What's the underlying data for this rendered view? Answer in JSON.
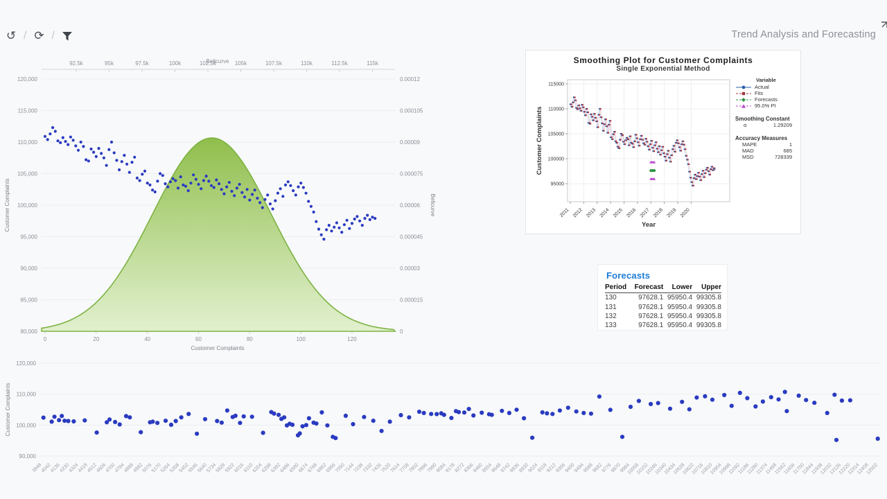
{
  "toolbar": {
    "history_icon": "↺",
    "refresh_icon": "⟳",
    "separator": "/"
  },
  "header": {
    "title": "Trend Analysis and Forecasting"
  },
  "main_chart": {
    "top_axis": {
      "title": "Bellcurve",
      "ticks": [
        "92.5k",
        "95k",
        "97.5k",
        "100k",
        "102.5k",
        "105k",
        "107.5k",
        "110k",
        "112.5k",
        "115k"
      ]
    },
    "left_axis": {
      "title": "Customer Complaints",
      "ticks": [
        "120,000",
        "115,000",
        "110,000",
        "105,000",
        "100,000",
        "95,000",
        "90,000",
        "85,000",
        "80,000"
      ]
    },
    "right_axis": {
      "title": "Bellcurve",
      "ticks": [
        "0.00012",
        "0.000105",
        "0.00009",
        "0.000075",
        "0.00006",
        "0.000045",
        "0.00003",
        "0.000015",
        "0"
      ]
    },
    "bottom_axis": {
      "title": "Customer Complaints",
      "ticks": [
        "0",
        "20",
        "40",
        "60",
        "80",
        "100",
        "120"
      ]
    }
  },
  "smoothing_plot": {
    "title": "Smoothing Plot for Customer Complaints",
    "subtitle": "Single Exponential Method",
    "ylabel": "Customer Complaints",
    "xlabel": "Year",
    "yticks": [
      "115000",
      "110000",
      "105000",
      "100000",
      "95000"
    ],
    "xticks": [
      "2011",
      "2012",
      "2013",
      "2014",
      "2015",
      "2016",
      "2017",
      "2018",
      "2019",
      "2020"
    ],
    "legend": {
      "title": "Variable",
      "items": [
        {
          "label": "Actual",
          "color": "#2b5fad",
          "marker": "circle"
        },
        {
          "label": "Fits",
          "color": "#a33540",
          "marker": "square"
        },
        {
          "label": "Forecasts",
          "color": "#2e9444",
          "marker": "diamond"
        },
        {
          "label": "95.0% PI",
          "color": "#bb4fd0",
          "marker": "triangle"
        }
      ]
    },
    "smoothing_constant": {
      "title": "Smoothing Constant",
      "alpha": "α",
      "value": "1.29209"
    },
    "accuracy": {
      "title": "Accuracy Measures",
      "rows": [
        [
          "MAPE",
          "1"
        ],
        [
          "MAD",
          "685"
        ],
        [
          "MSD",
          "728339"
        ]
      ]
    }
  },
  "forecasts": {
    "title": "Forecasts",
    "columns": [
      "Period",
      "Forecast",
      "Lower",
      "Upper"
    ],
    "rows": [
      [
        "130",
        "97628.1",
        "95950.4",
        "99305.8"
      ],
      [
        "131",
        "97628.1",
        "95950.4",
        "99305.8"
      ],
      [
        "132",
        "97628.1",
        "95950.4",
        "99305.8"
      ],
      [
        "133",
        "97628.1",
        "95950.4",
        "99305.8"
      ]
    ]
  },
  "bottom_chart": {
    "ylabel": "Customer Complaints",
    "yticks": [
      "120,000",
      "110,000",
      "100,000",
      "90,000"
    ],
    "xticks": [
      "3948",
      "4042",
      "4136",
      "4230",
      "4324",
      "4418",
      "4512",
      "4606",
      "4700",
      "4794",
      "4888",
      "4982",
      "5076",
      "5170",
      "5264",
      "5358",
      "5452",
      "5546",
      "5640",
      "5734",
      "5828",
      "5922",
      "6016",
      "6110",
      "6204",
      "6298",
      "6392",
      "6486",
      "6580",
      "6674",
      "6768",
      "6862",
      "6956",
      "7050",
      "7144",
      "7238",
      "7332",
      "7426",
      "7520",
      "7614",
      "7708",
      "7802",
      "7896",
      "7990",
      "8084",
      "8178",
      "8272",
      "8366",
      "8460",
      "8554",
      "8648",
      "8742",
      "8836",
      "8930",
      "9024",
      "9118",
      "9212",
      "9306",
      "9400",
      "9494",
      "9588",
      "9682",
      "9776",
      "9870",
      "9964",
      "10058",
      "10152",
      "10246",
      "10340",
      "10434",
      "10528",
      "10622",
      "10716",
      "10810",
      "10904",
      "10998",
      "11092",
      "11186",
      "11280",
      "11374",
      "11468",
      "11562",
      "11656",
      "11750",
      "11844",
      "11938",
      "12032",
      "12126",
      "12220",
      "12314",
      "12408",
      "12502"
    ]
  },
  "chart_data": {
    "type": "multi",
    "colors": {
      "scatter_blue": "#2a3bc0",
      "bell_green": "#7cb342",
      "bell_green_light": "#ddeec6",
      "grid": "#ebedf0",
      "axis_line": "#cfd3da",
      "tick_text": "#8a8f98",
      "actual_blue": "#2b5fad",
      "actual_connector": "#aac7e8",
      "fits_red": "#a33540",
      "fits_connector": "#e3b0b5",
      "forecast_green": "#2e9444",
      "pi_magenta": "#bb4fd0"
    },
    "complaints_series": [
      110900,
      110400,
      111300,
      112300,
      111700,
      110200,
      109900,
      110700,
      110100,
      109600,
      110800,
      110300,
      109400,
      108700,
      110000,
      109300,
      107200,
      107000,
      108900,
      108400,
      107700,
      109000,
      108200,
      107500,
      106300,
      108800,
      110000,
      108300,
      107100,
      105600,
      106900,
      107900,
      106500,
      105200,
      106800,
      107600,
      104300,
      103900,
      104900,
      105400,
      103500,
      103200,
      102400,
      102100,
      103800,
      105000,
      104700,
      103400,
      102900,
      103700,
      104200,
      103900,
      102700,
      104500,
      103200,
      103000,
      102300,
      103500,
      104800,
      104100,
      103300,
      102600,
      103900,
      104600,
      103800,
      103100,
      102800,
      104000,
      103400,
      102500,
      101800,
      102900,
      103600,
      102200,
      101500,
      102700,
      103300,
      102000,
      101300,
      102500,
      100800,
      101700,
      102400,
      101100,
      100400,
      99600,
      100900,
      101600,
      100200,
      99400,
      100700,
      101900,
      102600,
      101400,
      103200,
      103700,
      103100,
      102300,
      101600,
      102900,
      103500,
      102800,
      101900,
      100600,
      99800,
      98900,
      97400,
      96200,
      95300,
      94600,
      96100,
      96800,
      95900,
      96500,
      97200,
      96400,
      95700,
      96900,
      97600,
      96300,
      97100,
      97800,
      98200,
      97500,
      96800,
      97900,
      98400,
      97700,
      98100,
      97900
    ],
    "main_chart": {
      "type": "scatter+area",
      "x_range": [
        0,
        129
      ],
      "y_left_range": [
        80000,
        120000
      ],
      "y_right_range": [
        0,
        0.00012
      ],
      "bellcurve": {
        "mean": 102800,
        "sd": 4500,
        "peak_density": 9.2e-05
      }
    },
    "smoothing": {
      "type": "line",
      "y_range": [
        95000,
        115000
      ],
      "forecast_value": 97628.1,
      "pi_lower": 95950.4,
      "pi_upper": 99305.8,
      "forecast_periods": [
        130,
        131,
        132,
        133
      ]
    },
    "bottom_scatter": {
      "type": "scatter",
      "y_range": [
        90000,
        120000
      ],
      "points": [
        [
          0.2,
          102400
        ],
        [
          1.1,
          101100
        ],
        [
          1.4,
          102700
        ],
        [
          1.9,
          101600
        ],
        [
          2.2,
          102950
        ],
        [
          2.5,
          101400
        ],
        [
          2.9,
          101300
        ],
        [
          3.5,
          101200
        ],
        [
          4.7,
          101500
        ],
        [
          6.0,
          97600
        ],
        [
          7.1,
          100900
        ],
        [
          7.4,
          101800
        ],
        [
          8.0,
          101000
        ],
        [
          8.5,
          100200
        ],
        [
          9.2,
          102900
        ],
        [
          9.6,
          102500
        ],
        [
          10.8,
          97700
        ],
        [
          11.8,
          100900
        ],
        [
          12.1,
          101100
        ],
        [
          12.6,
          100700
        ],
        [
          13.5,
          101400
        ],
        [
          14.1,
          100100
        ],
        [
          14.6,
          101300
        ],
        [
          15.2,
          102500
        ],
        [
          16.0,
          103600
        ],
        [
          16.9,
          97200
        ],
        [
          17.8,
          101900
        ],
        [
          19.1,
          101300
        ],
        [
          19.6,
          100800
        ],
        [
          20.2,
          104700
        ],
        [
          20.8,
          102600
        ],
        [
          21.1,
          103000
        ],
        [
          21.6,
          100700
        ],
        [
          22.0,
          102800
        ],
        [
          22.9,
          102700
        ],
        [
          24.1,
          97500
        ],
        [
          25.0,
          104200
        ],
        [
          25.3,
          103700
        ],
        [
          25.8,
          103300
        ],
        [
          26.1,
          102000
        ],
        [
          26.4,
          102500
        ],
        [
          26.7,
          99900
        ],
        [
          27.0,
          100400
        ],
        [
          27.3,
          100100
        ],
        [
          27.9,
          96700
        ],
        [
          28.1,
          97300
        ],
        [
          28.4,
          99600
        ],
        [
          28.8,
          100000
        ],
        [
          29.1,
          102200
        ],
        [
          29.6,
          100800
        ],
        [
          29.9,
          100500
        ],
        [
          30.5,
          104100
        ],
        [
          31.1,
          99900
        ],
        [
          31.7,
          96200
        ],
        [
          32.0,
          95800
        ],
        [
          33.1,
          103000
        ],
        [
          33.9,
          100300
        ],
        [
          35.1,
          102600
        ],
        [
          36.1,
          101400
        ],
        [
          37.0,
          98100
        ],
        [
          37.9,
          101100
        ],
        [
          39.1,
          103200
        ],
        [
          40.0,
          102500
        ],
        [
          41.1,
          104300
        ],
        [
          41.6,
          103900
        ],
        [
          42.4,
          103600
        ],
        [
          43.0,
          103550
        ],
        [
          43.5,
          103800
        ],
        [
          43.8,
          103300
        ],
        [
          44.6,
          102300
        ],
        [
          45.1,
          104500
        ],
        [
          45.4,
          104200
        ],
        [
          46.0,
          104050
        ],
        [
          46.5,
          105200
        ],
        [
          47.0,
          103100
        ],
        [
          47.9,
          104000
        ],
        [
          48.7,
          103500
        ],
        [
          49.0,
          103300
        ],
        [
          50.1,
          104600
        ],
        [
          50.9,
          103900
        ],
        [
          51.7,
          104950
        ],
        [
          52.5,
          102200
        ],
        [
          53.4,
          95900
        ],
        [
          54.5,
          104100
        ],
        [
          55.0,
          103800
        ],
        [
          55.6,
          103600
        ],
        [
          56.4,
          104700
        ],
        [
          57.3,
          105600
        ],
        [
          58.2,
          104400
        ],
        [
          59.0,
          103900
        ],
        [
          59.8,
          103700
        ],
        [
          60.7,
          109200
        ],
        [
          61.9,
          104900
        ],
        [
          63.2,
          96200
        ],
        [
          64.1,
          105900
        ],
        [
          65.0,
          107800
        ],
        [
          66.3,
          106800
        ],
        [
          67.1,
          107100
        ],
        [
          68.4,
          105300
        ],
        [
          69.7,
          107500
        ],
        [
          70.5,
          105100
        ],
        [
          71.3,
          108900
        ],
        [
          72.2,
          109300
        ],
        [
          73.0,
          108200
        ],
        [
          74.3,
          109700
        ],
        [
          75.1,
          106200
        ],
        [
          76.0,
          110400
        ],
        [
          76.8,
          108700
        ],
        [
          77.7,
          106000
        ],
        [
          78.5,
          107600
        ],
        [
          79.4,
          109000
        ],
        [
          80.2,
          108300
        ],
        [
          80.9,
          110700
        ],
        [
          81.1,
          104500
        ],
        [
          82.4,
          109500
        ],
        [
          83.2,
          108100
        ],
        [
          84.1,
          107200
        ],
        [
          85.5,
          103900
        ],
        [
          86.3,
          109800
        ],
        [
          86.5,
          95200
        ],
        [
          87.1,
          107900
        ],
        [
          88.0,
          108000
        ],
        [
          91.0,
          95600
        ]
      ]
    }
  }
}
